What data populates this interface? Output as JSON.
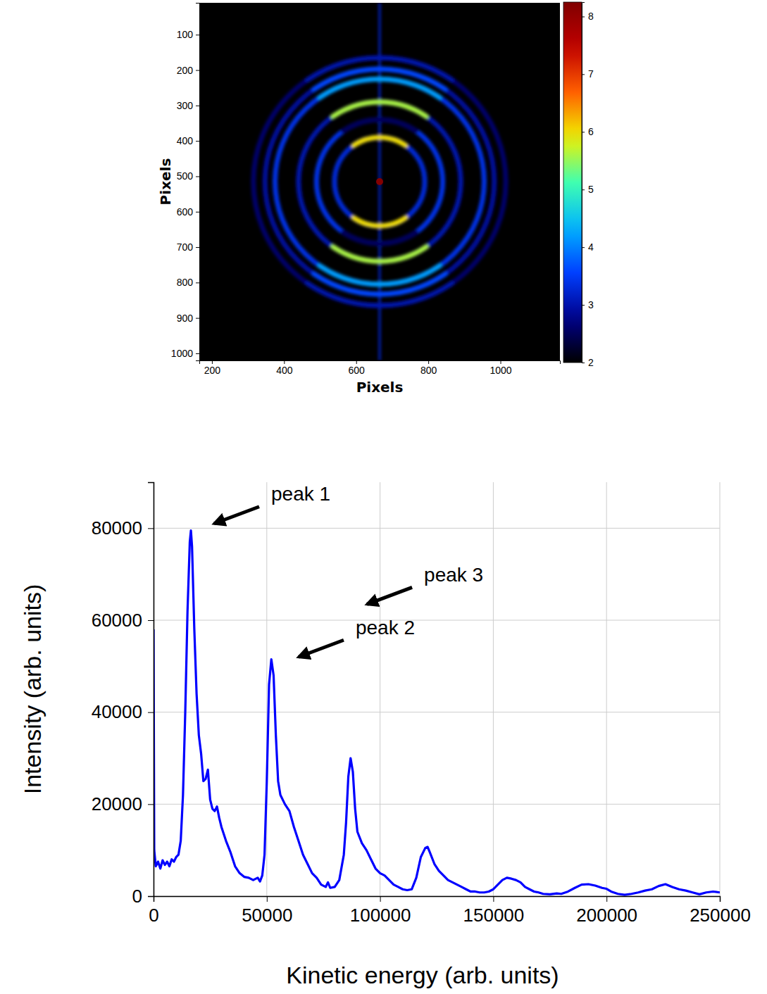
{
  "chart_data": [
    {
      "type": "heatmap",
      "x_label": "Pixels",
      "y_label": "Pixels",
      "xlim": [
        165,
        1165
      ],
      "ylim": [
        1020,
        10
      ],
      "xticks": [
        200,
        400,
        600,
        800,
        1000
      ],
      "yticks": [
        100,
        200,
        300,
        400,
        500,
        600,
        700,
        800,
        900,
        1000
      ],
      "center": {
        "x": 665,
        "y": 515,
        "value": 8.2
      },
      "streak": {
        "value": 3.2
      },
      "rings": [
        {
          "radius": 125,
          "value": 3.3,
          "pole_value": 6.0
        },
        {
          "radius": 175,
          "value": 3.4,
          "pole_value": 2.5
        },
        {
          "radius": 225,
          "value": 3.0,
          "pole_value": 5.6
        },
        {
          "radius": 290,
          "value": 3.4,
          "pole_value": 4.2
        },
        {
          "radius": 318,
          "value": 2.9,
          "pole_value": 3.6
        },
        {
          "radius": 350,
          "value": 2.6,
          "pole_value": 3.0
        }
      ],
      "colorbar": {
        "range": [
          2,
          8.25
        ],
        "ticks": [
          2,
          3,
          4,
          5,
          6,
          7,
          8
        ]
      }
    },
    {
      "type": "line",
      "x_label": "Kinetic energy (arb. units)",
      "y_label": "Intensity (arb. units)",
      "xlim": [
        0,
        250000
      ],
      "ylim": [
        0,
        90000
      ],
      "xticks": [
        0,
        50000,
        100000,
        150000,
        200000,
        250000
      ],
      "yticks": [
        0,
        20000,
        40000,
        60000,
        80000
      ],
      "grid": true,
      "color": "#0000ff",
      "x": [
        0,
        300,
        1000,
        2000,
        3000,
        4000,
        5000,
        6000,
        7000,
        8000,
        9000,
        10000,
        11000,
        12000,
        13000,
        14000,
        15000,
        16000,
        16500,
        17000,
        18000,
        19000,
        20000,
        21000,
        22000,
        23000,
        24000,
        25000,
        26000,
        27000,
        28000,
        29000,
        30000,
        32000,
        34000,
        36000,
        38000,
        40000,
        42000,
        44000,
        46000,
        47000,
        48000,
        49000,
        50000,
        51000,
        52000,
        53000,
        54000,
        55000,
        56000,
        58000,
        60000,
        62000,
        64000,
        66000,
        68000,
        70000,
        72000,
        74000,
        76000,
        77000,
        78000,
        80000,
        82000,
        84000,
        85000,
        86000,
        87000,
        88000,
        89000,
        90000,
        92000,
        94000,
        96000,
        98000,
        100000,
        102000,
        104000,
        106000,
        108000,
        110000,
        112000,
        114000,
        116000,
        118000,
        120000,
        121000,
        122000,
        124000,
        126000,
        128000,
        130000,
        132000,
        134000,
        136000,
        138000,
        140000,
        142000,
        144000,
        146000,
        148000,
        150000,
        152000,
        154000,
        156000,
        158000,
        160000,
        162000,
        164000,
        166000,
        168000,
        170000,
        172000,
        175000,
        178000,
        180000,
        183000,
        186000,
        189000,
        192000,
        195000,
        198000,
        200000,
        202000,
        205000,
        208000,
        211000,
        214000,
        217000,
        220000,
        223000,
        226000,
        229000,
        232000,
        235000,
        238000,
        241000,
        244000,
        247000,
        250000
      ],
      "values": [
        58000,
        10000,
        6500,
        7500,
        6000,
        7800,
        6800,
        7500,
        6500,
        8000,
        7500,
        8500,
        9000,
        12000,
        22000,
        40000,
        62000,
        77000,
        79500,
        76000,
        58000,
        44000,
        35000,
        31000,
        25000,
        25500,
        27500,
        21000,
        19000,
        18500,
        19500,
        17000,
        15000,
        12000,
        9500,
        6500,
        5000,
        4200,
        4000,
        3500,
        4000,
        3200,
        4500,
        9000,
        25000,
        46000,
        51500,
        48000,
        35000,
        25000,
        22000,
        20000,
        18500,
        15000,
        12000,
        9000,
        7000,
        5000,
        4000,
        2500,
        2000,
        3000,
        1800,
        2000,
        3500,
        9000,
        16000,
        26000,
        30000,
        27000,
        19000,
        14000,
        11500,
        10000,
        8000,
        6000,
        5000,
        4500,
        3500,
        2500,
        2000,
        1500,
        1300,
        1500,
        4000,
        8500,
        10500,
        10700,
        9500,
        7000,
        5500,
        4500,
        3500,
        3000,
        2500,
        2000,
        1500,
        1000,
        1000,
        800,
        800,
        1000,
        1500,
        2500,
        3500,
        4000,
        3800,
        3500,
        3000,
        2000,
        1500,
        1000,
        800,
        500,
        400,
        600,
        500,
        1000,
        1800,
        2500,
        2600,
        2300,
        1800,
        1600,
        1000,
        500,
        300,
        500,
        800,
        1200,
        1500,
        2200,
        2600,
        2000,
        1500,
        1200,
        800,
        400,
        800,
        1000,
        800
      ],
      "annotations": [
        {
          "text": "peak 1",
          "x": 25500,
          "y": 80700
        },
        {
          "text": "peak 2",
          "x": 62800,
          "y": 51700
        },
        {
          "text": "peak 3",
          "x": 93000,
          "y": 63150
        }
      ]
    }
  ]
}
